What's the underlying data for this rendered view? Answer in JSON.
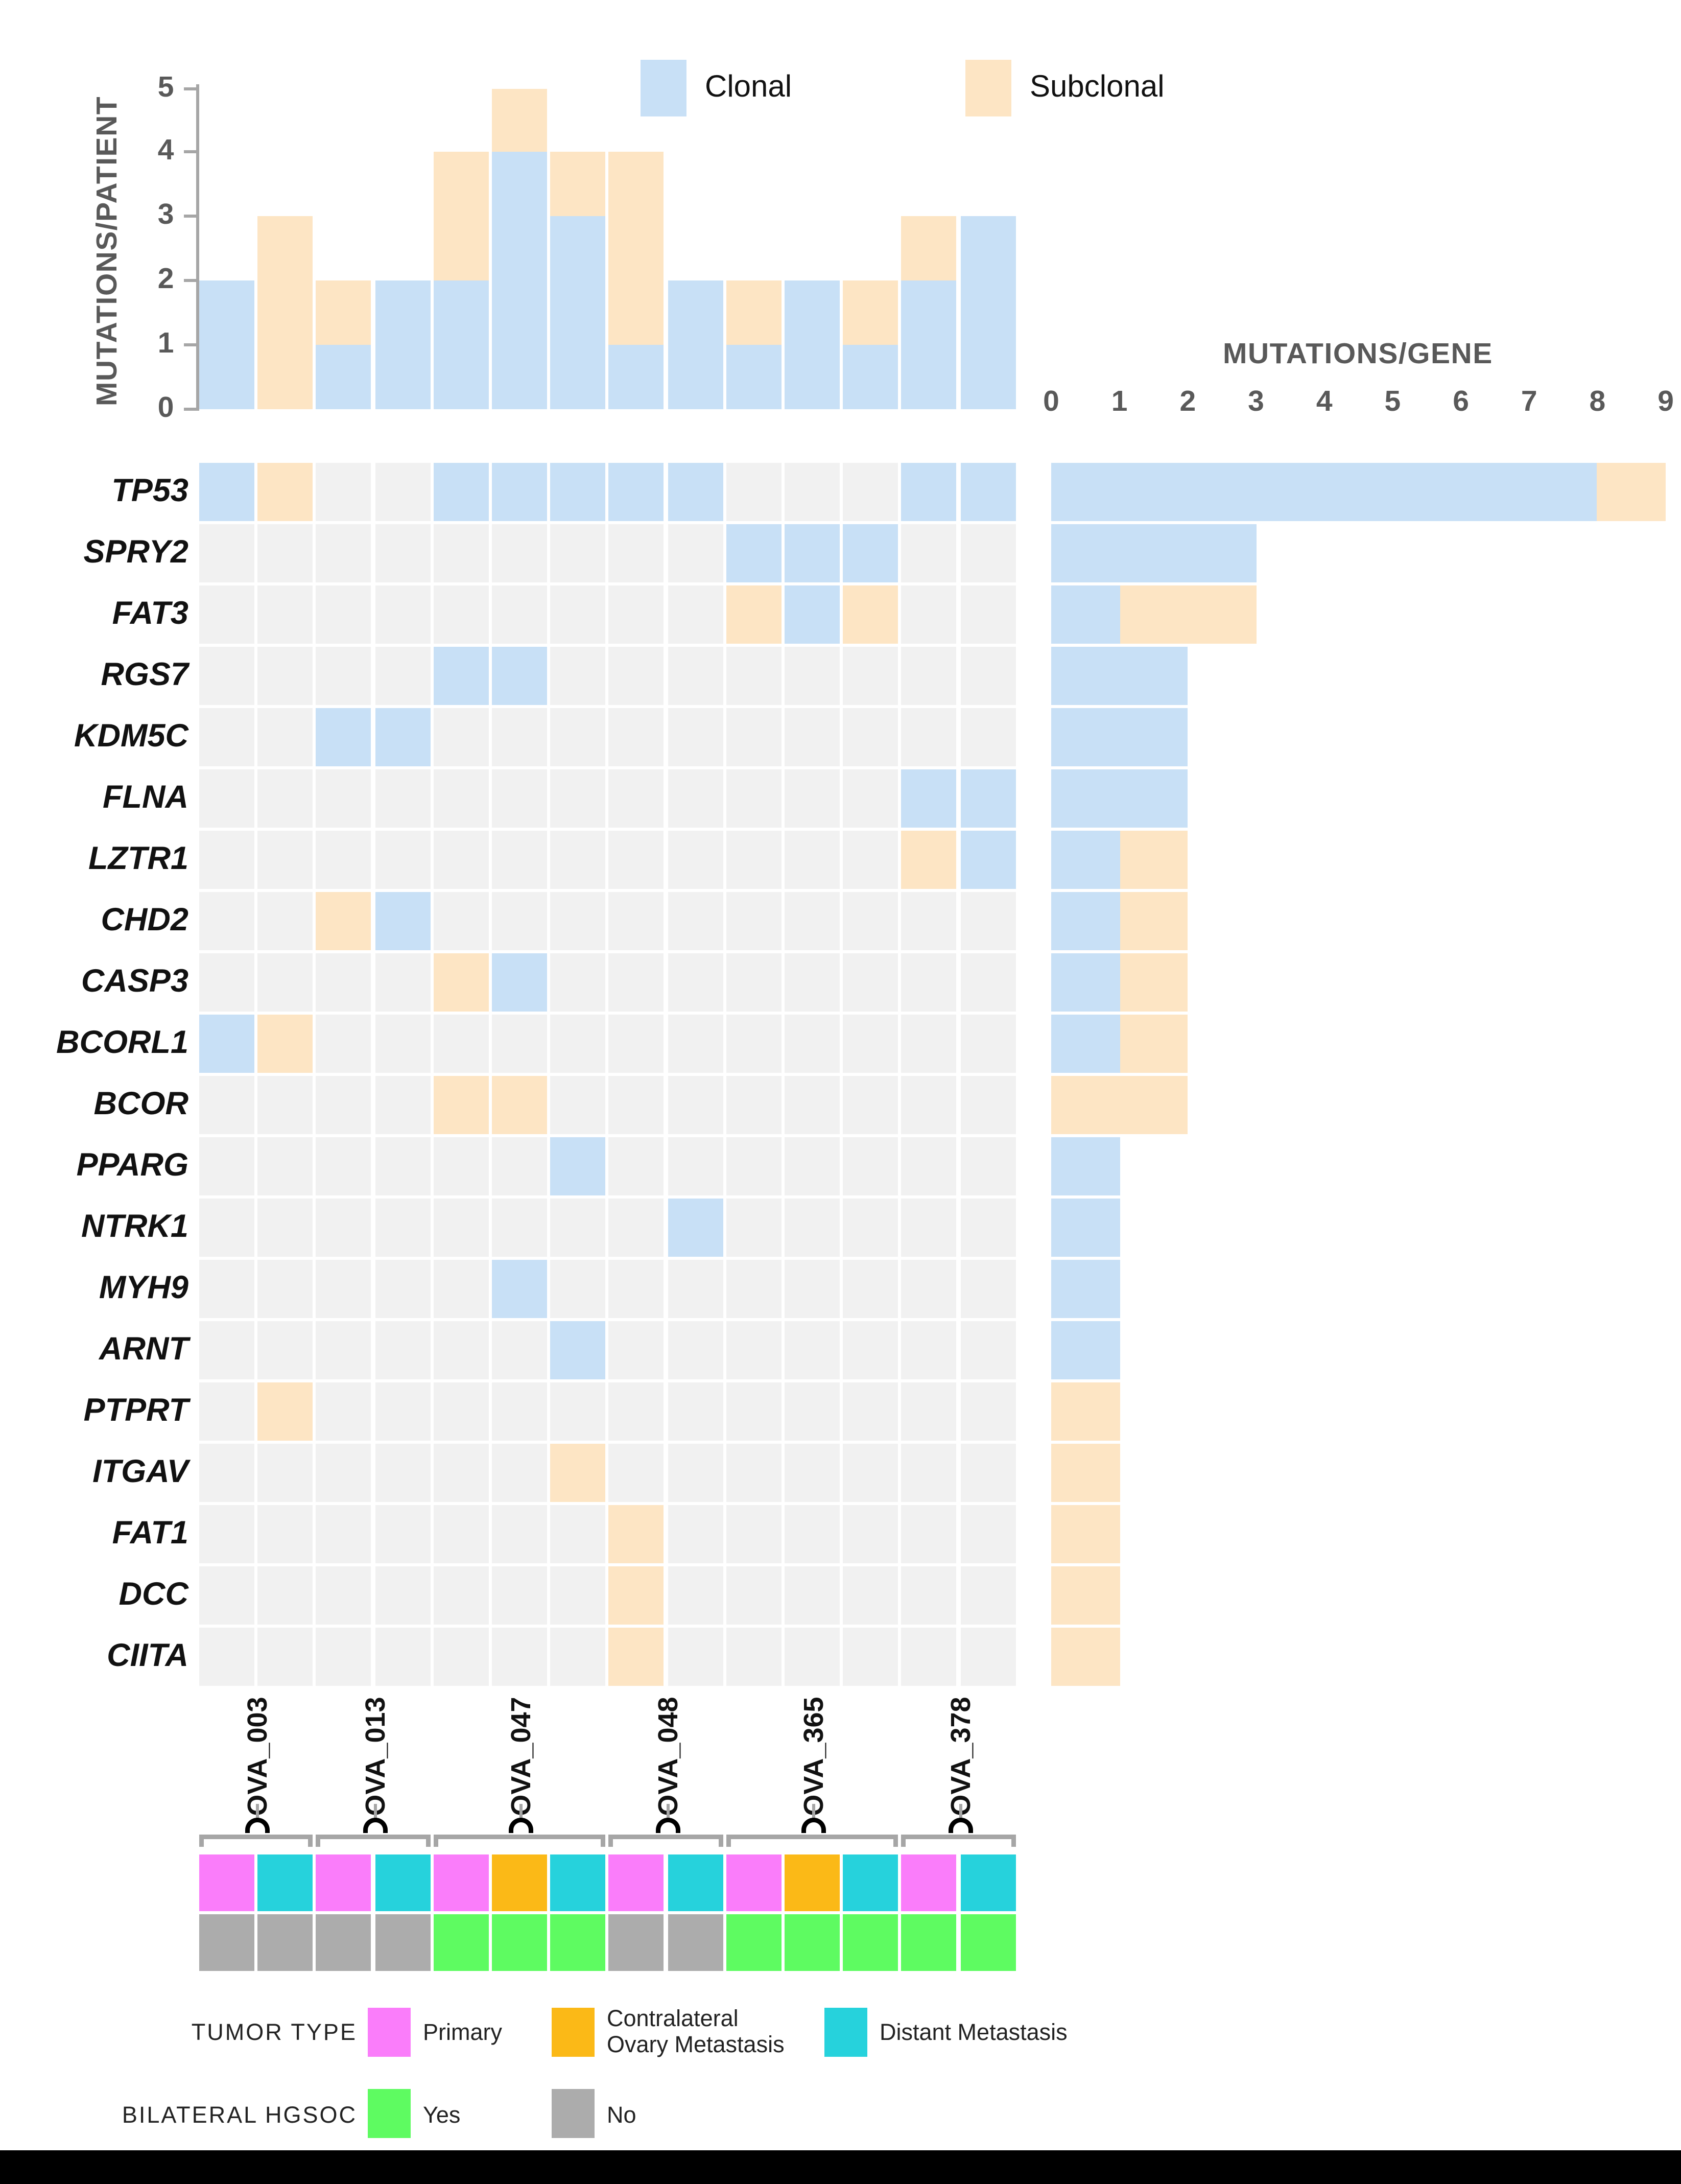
{
  "legend_clonality": {
    "clonal": "Clonal",
    "subclonal": "Subclonal"
  },
  "colors": {
    "clonal": "#C8E0F6",
    "subclonal": "#FDE5C4",
    "empty_cell": "#F1F1F1",
    "axis_text": "#595959",
    "axis_line": "#A6A6A6",
    "bracket": "#A6A6A6",
    "tumor_type": {
      "Primary": "#FA7DFA",
      "Contralateral Ovary Metastasis": "#FBB917",
      "Distant Metastasis": "#26D2DC"
    },
    "bilateral": {
      "Yes": "#5EFB61",
      "No": "#ACACAC"
    },
    "bottom_bar": "#000000"
  },
  "chart_data": {
    "type": "heatmap",
    "subtype": "oncoprint_with_marginal_stacked_bars",
    "legend_entries": [
      "Clonal",
      "Subclonal"
    ],
    "cell_states": {
      "C": "clonal",
      "S": "subclonal",
      "-": "none"
    },
    "genes": [
      "TP53",
      "SPRY2",
      "FAT3",
      "RGS7",
      "KDM5C",
      "FLNA",
      "LZTR1",
      "CHD2",
      "CASP3",
      "BCORL1",
      "BCOR",
      "PPARG",
      "NTRK1",
      "MYH9",
      "ARNT",
      "PTPRT",
      "ITGAV",
      "FAT1",
      "DCC",
      "CIITA"
    ],
    "matrix": [
      {
        "gene": "TP53",
        "cells": "CS--CCCCC---CC"
      },
      {
        "gene": "SPRY2",
        "cells": "---------CCC--"
      },
      {
        "gene": "FAT3",
        "cells": "---------SCS--"
      },
      {
        "gene": "RGS7",
        "cells": "----CC--------"
      },
      {
        "gene": "KDM5C",
        "cells": "--CC----------"
      },
      {
        "gene": "FLNA",
        "cells": "------------CC"
      },
      {
        "gene": "LZTR1",
        "cells": "------------SC"
      },
      {
        "gene": "CHD2",
        "cells": "--SC----------"
      },
      {
        "gene": "CASP3",
        "cells": "----SC--------"
      },
      {
        "gene": "BCORL1",
        "cells": "CS------------"
      },
      {
        "gene": "BCOR",
        "cells": "----SS--------"
      },
      {
        "gene": "PPARG",
        "cells": "------C-------"
      },
      {
        "gene": "NTRK1",
        "cells": "--------C-----"
      },
      {
        "gene": "MYH9",
        "cells": "-----C--------"
      },
      {
        "gene": "ARNT",
        "cells": "------C-------"
      },
      {
        "gene": "PTPRT",
        "cells": "-S------------"
      },
      {
        "gene": "ITGAV",
        "cells": "------S-------"
      },
      {
        "gene": "FAT1",
        "cells": "-------S------"
      },
      {
        "gene": "DCC",
        "cells": "-------S------"
      },
      {
        "gene": "CIITA",
        "cells": "-------S------"
      }
    ],
    "mutations_per_patient": {
      "ylabel": "MUTATIONS/PATIENT",
      "yticks": [
        0,
        1,
        2,
        3,
        4,
        5
      ],
      "ylim": [
        0,
        5
      ],
      "clonal": [
        2,
        0,
        1,
        2,
        2,
        4,
        3,
        1,
        2,
        1,
        2,
        1,
        2,
        3
      ],
      "subclonal": [
        0,
        3,
        1,
        0,
        2,
        1,
        1,
        3,
        0,
        1,
        0,
        1,
        1,
        0
      ]
    },
    "mutations_per_gene": {
      "xlabel": "MUTATIONS/GENE",
      "xticks": [
        0,
        1,
        2,
        3,
        4,
        5,
        6,
        7,
        8,
        9
      ],
      "xlim": [
        0,
        9
      ],
      "clonal": [
        8,
        3,
        1,
        2,
        2,
        2,
        1,
        1,
        1,
        1,
        0,
        1,
        1,
        1,
        1,
        0,
        0,
        0,
        0,
        0
      ],
      "subclonal": [
        1,
        0,
        2,
        0,
        0,
        0,
        1,
        1,
        1,
        1,
        2,
        0,
        0,
        0,
        0,
        1,
        1,
        1,
        1,
        1
      ]
    },
    "samples": [
      {
        "id": "OVA_003",
        "col_start": 1,
        "col_end": 2,
        "bilateral_hgsoc": "No"
      },
      {
        "id": "OVA_013",
        "col_start": 3,
        "col_end": 4,
        "bilateral_hgsoc": "No"
      },
      {
        "id": "OVA_047",
        "col_start": 5,
        "col_end": 7,
        "bilateral_hgsoc": "Yes"
      },
      {
        "id": "OVA_048",
        "col_start": 8,
        "col_end": 9,
        "bilateral_hgsoc": "No"
      },
      {
        "id": "OVA_365",
        "col_start": 10,
        "col_end": 12,
        "bilateral_hgsoc": "Yes"
      },
      {
        "id": "OVA_378",
        "col_start": 13,
        "col_end": 14,
        "bilateral_hgsoc": "Yes"
      }
    ],
    "column_annotations": {
      "tumor_type": [
        "Primary",
        "Distant Metastasis",
        "Primary",
        "Distant Metastasis",
        "Primary",
        "Contralateral Ovary Metastasis",
        "Distant Metastasis",
        "Primary",
        "Distant Metastasis",
        "Primary",
        "Contralateral Ovary Metastasis",
        "Distant Metastasis",
        "Primary",
        "Distant Metastasis"
      ],
      "bilateral_hgsoc": [
        "No",
        "No",
        "No",
        "No",
        "Yes",
        "Yes",
        "Yes",
        "No",
        "No",
        "Yes",
        "Yes",
        "Yes",
        "Yes",
        "Yes"
      ]
    }
  },
  "legend_tumor_type": {
    "label": "TUMOR TYPE",
    "items": [
      {
        "label": "Primary"
      },
      {
        "label": "Contralateral Ovary Metastasis",
        "line1": "Contralateral",
        "line2": "Ovary Metastasis"
      },
      {
        "label": "Distant Metastasis"
      }
    ]
  },
  "legend_bilateral": {
    "label": "BILATERAL HGSOC",
    "items": [
      {
        "label": "Yes"
      },
      {
        "label": "No"
      }
    ]
  }
}
